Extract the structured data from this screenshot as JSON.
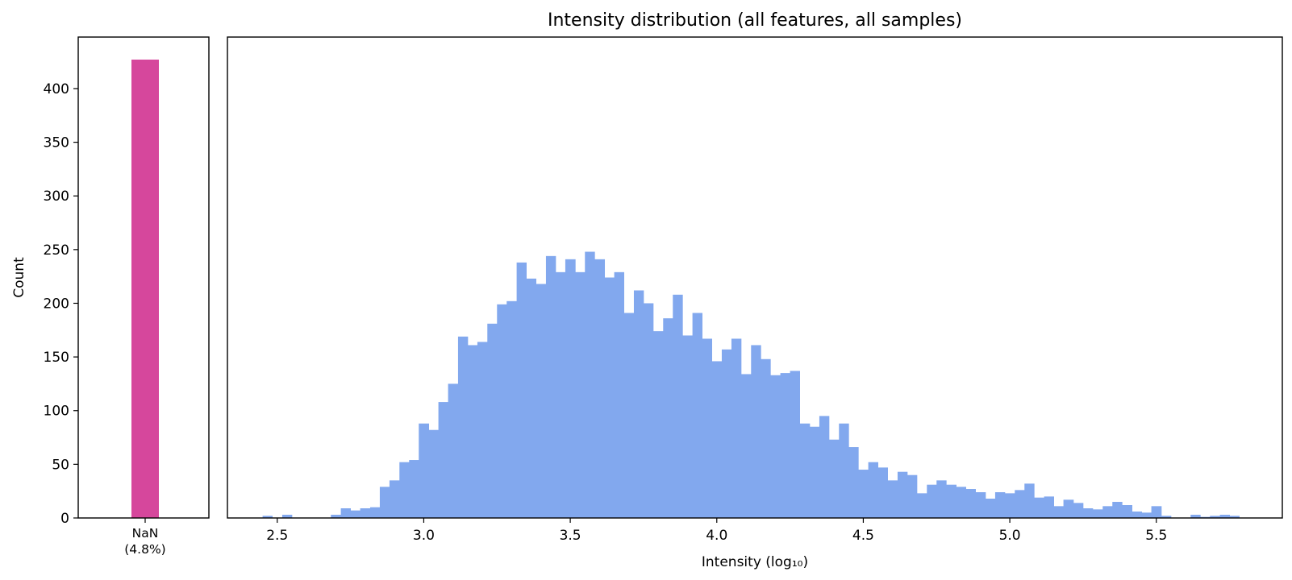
{
  "chart_data": [
    {
      "type": "bar",
      "panel": "nan",
      "categories": [
        "NaN"
      ],
      "category_sublabel": "(4.8%)",
      "values": [
        427
      ],
      "ylabel": "Count",
      "ylim": [
        0,
        448
      ],
      "yticks": [
        0,
        50,
        100,
        150,
        200,
        250,
        300,
        350,
        400
      ],
      "color": "#d6479c"
    },
    {
      "type": "bar",
      "panel": "histogram",
      "title": "Intensity distribution (all features, all samples)",
      "xlabel": "Intensity (log₁₀)",
      "xlim": [
        2.33,
        5.93
      ],
      "ylim": [
        0,
        448
      ],
      "xticks": [
        2.5,
        3.0,
        3.5,
        4.0,
        4.5,
        5.0,
        5.5
      ],
      "xtick_labels": [
        "2.5",
        "3.0",
        "3.5",
        "4.0",
        "4.5",
        "5.0",
        "5.5"
      ],
      "grid": false,
      "color": "#82a8ee",
      "bins": [
        [
          2.45,
          2.483,
          2
        ],
        [
          2.483,
          2.517,
          0
        ],
        [
          2.517,
          2.55,
          3
        ],
        [
          2.55,
          2.583,
          0
        ],
        [
          2.583,
          2.617,
          0
        ],
        [
          2.617,
          2.65,
          0
        ],
        [
          2.65,
          2.683,
          0
        ],
        [
          2.683,
          2.717,
          3
        ],
        [
          2.717,
          2.75,
          9
        ],
        [
          2.75,
          2.783,
          7
        ],
        [
          2.783,
          2.817,
          9
        ],
        [
          2.817,
          2.85,
          10
        ],
        [
          2.85,
          2.883,
          29
        ],
        [
          2.883,
          2.917,
          35
        ],
        [
          2.917,
          2.95,
          52
        ],
        [
          2.95,
          2.983,
          54
        ],
        [
          2.983,
          3.017,
          88
        ],
        [
          3.017,
          3.05,
          82
        ],
        [
          3.05,
          3.083,
          108
        ],
        [
          3.083,
          3.117,
          125
        ],
        [
          3.117,
          3.15,
          169
        ],
        [
          3.15,
          3.183,
          161
        ],
        [
          3.183,
          3.217,
          164
        ],
        [
          3.217,
          3.25,
          181
        ],
        [
          3.25,
          3.283,
          199
        ],
        [
          3.283,
          3.317,
          202
        ],
        [
          3.317,
          3.35,
          238
        ],
        [
          3.35,
          3.383,
          223
        ],
        [
          3.383,
          3.417,
          218
        ],
        [
          3.417,
          3.45,
          244
        ],
        [
          3.45,
          3.483,
          229
        ],
        [
          3.483,
          3.517,
          241
        ],
        [
          3.517,
          3.55,
          229
        ],
        [
          3.55,
          3.583,
          248
        ],
        [
          3.583,
          3.617,
          241
        ],
        [
          3.617,
          3.65,
          224
        ],
        [
          3.65,
          3.683,
          229
        ],
        [
          3.683,
          3.717,
          191
        ],
        [
          3.717,
          3.75,
          212
        ],
        [
          3.75,
          3.783,
          200
        ],
        [
          3.783,
          3.817,
          174
        ],
        [
          3.817,
          3.85,
          186
        ],
        [
          3.85,
          3.883,
          208
        ],
        [
          3.883,
          3.917,
          170
        ],
        [
          3.917,
          3.95,
          191
        ],
        [
          3.95,
          3.983,
          167
        ],
        [
          3.983,
          4.017,
          146
        ],
        [
          4.017,
          4.05,
          157
        ],
        [
          4.05,
          4.083,
          167
        ],
        [
          4.083,
          4.117,
          134
        ],
        [
          4.117,
          4.15,
          161
        ],
        [
          4.15,
          4.183,
          148
        ],
        [
          4.183,
          4.217,
          133
        ],
        [
          4.217,
          4.25,
          135
        ],
        [
          4.25,
          4.283,
          137
        ],
        [
          4.283,
          4.317,
          88
        ],
        [
          4.317,
          4.35,
          85
        ],
        [
          4.35,
          4.383,
          95
        ],
        [
          4.383,
          4.417,
          73
        ],
        [
          4.417,
          4.45,
          88
        ],
        [
          4.45,
          4.483,
          66
        ],
        [
          4.483,
          4.517,
          45
        ],
        [
          4.517,
          4.55,
          52
        ],
        [
          4.55,
          4.583,
          47
        ],
        [
          4.583,
          4.617,
          35
        ],
        [
          4.617,
          4.65,
          43
        ],
        [
          4.65,
          4.683,
          40
        ],
        [
          4.683,
          4.717,
          23
        ],
        [
          4.717,
          4.75,
          31
        ],
        [
          4.75,
          4.783,
          35
        ],
        [
          4.783,
          4.817,
          31
        ],
        [
          4.817,
          4.85,
          29
        ],
        [
          4.85,
          4.883,
          27
        ],
        [
          4.883,
          4.917,
          24
        ],
        [
          4.917,
          4.95,
          18
        ],
        [
          4.95,
          4.983,
          24
        ],
        [
          4.983,
          5.017,
          23
        ],
        [
          5.017,
          5.05,
          26
        ],
        [
          5.05,
          5.083,
          32
        ],
        [
          5.083,
          5.117,
          19
        ],
        [
          5.117,
          5.15,
          20
        ],
        [
          5.15,
          5.183,
          11
        ],
        [
          5.183,
          5.217,
          17
        ],
        [
          5.217,
          5.25,
          14
        ],
        [
          5.25,
          5.283,
          9
        ],
        [
          5.283,
          5.317,
          8
        ],
        [
          5.317,
          5.35,
          11
        ],
        [
          5.35,
          5.383,
          15
        ],
        [
          5.383,
          5.417,
          12
        ],
        [
          5.417,
          5.45,
          6
        ],
        [
          5.45,
          5.483,
          5
        ],
        [
          5.483,
          5.517,
          11
        ],
        [
          5.517,
          5.55,
          2
        ],
        [
          5.55,
          5.583,
          0
        ],
        [
          5.583,
          5.617,
          0
        ],
        [
          5.617,
          5.65,
          3
        ],
        [
          5.65,
          5.683,
          1
        ],
        [
          5.683,
          5.717,
          2
        ],
        [
          5.717,
          5.75,
          3
        ],
        [
          5.75,
          5.783,
          2
        ]
      ]
    }
  ]
}
